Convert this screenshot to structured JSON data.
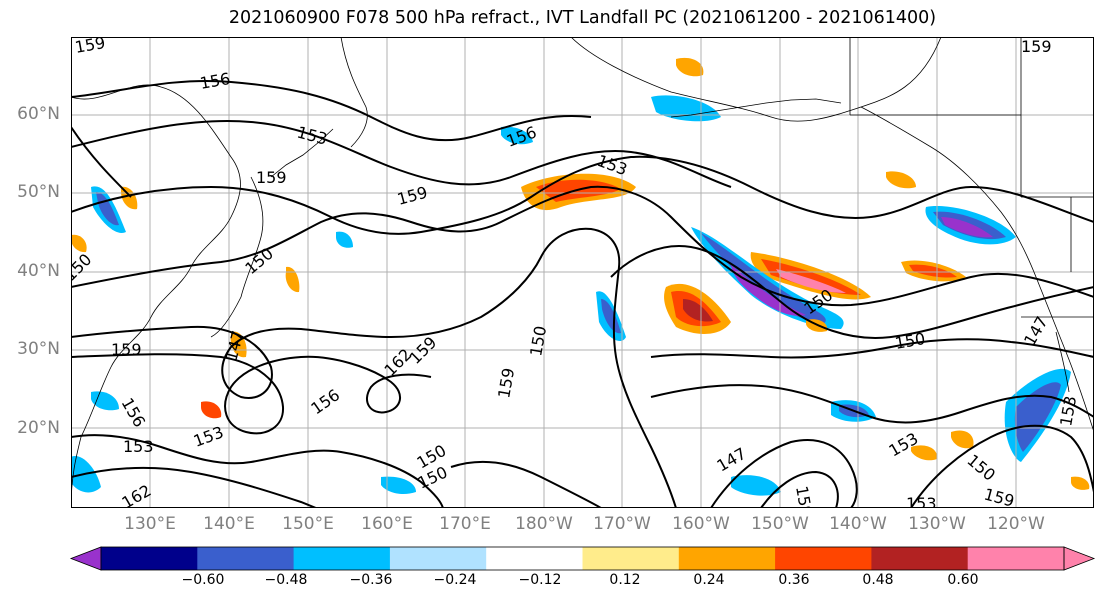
{
  "title": "2021060900 F078 500 hPa refract., IVT Landfall PC (2021061200 - 2021061400)",
  "lat_labels": [
    "60°N",
    "50°N",
    "40°N",
    "30°N",
    "20°N"
  ],
  "lon_labels": [
    "130°E",
    "140°E",
    "150°E",
    "160°E",
    "170°E",
    "180°W",
    "170°W",
    "160°W",
    "150°W",
    "140°W",
    "130°W",
    "120°W"
  ],
  "contour_labels": [
    "159",
    "156",
    "153",
    "159",
    "156",
    "153",
    "159",
    "159",
    "150",
    "147",
    "159",
    "156",
    "156",
    "153",
    "150",
    "150",
    "162",
    "159",
    "159",
    "150",
    "147",
    "150",
    "153",
    "147",
    "153",
    "150",
    "159",
    "153",
    "153",
    "150",
    "162",
    "159",
    "150"
  ],
  "colorbar": {
    "ticks": [
      "−0.60",
      "−0.48",
      "−0.36",
      "−0.24",
      "−0.12",
      "0.12",
      "0.24",
      "0.36",
      "0.48",
      "0.60"
    ],
    "colors": [
      "#9932cc",
      "#00008b",
      "#3a5fcd",
      "#00bfff",
      "#b0e2ff",
      "#ffffff",
      "#ffec8b",
      "#ffa500",
      "#ff4500",
      "#b22222",
      "#ff82ab",
      "#ff82ab"
    ]
  }
}
